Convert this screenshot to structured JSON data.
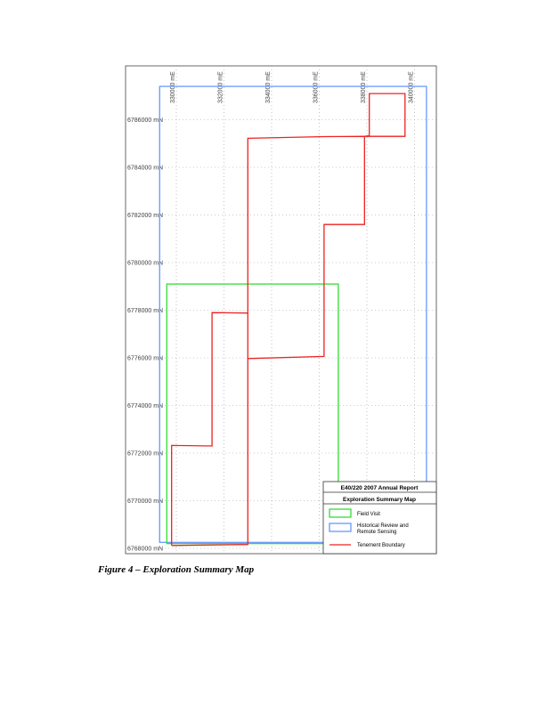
{
  "figure_caption": "Figure 4 – Exploration Summary Map",
  "map": {
    "easting_labels": [
      "330000 mE",
      "332000 mE",
      "334000 mE",
      "336000 mE",
      "338000 mE",
      "340000 mE"
    ],
    "northing_labels": [
      "6786000 mN",
      "6784000 mN",
      "6782000 mN",
      "6780000 mN",
      "6778000 mN",
      "6776000 mN",
      "6774000 mN",
      "6772000 mN",
      "6770000 mN",
      "6768000 mN"
    ],
    "tenement_boundary": [
      [
        329800,
        6768120
      ],
      [
        333000,
        6768160
      ],
      [
        333000,
        6777880
      ],
      [
        331500,
        6777900
      ],
      [
        331500,
        6772300
      ],
      [
        329800,
        6772320
      ],
      [
        329800,
        6768120
      ]
    ],
    "tenement_boundary_main": [
      [
        333000,
        6775970
      ],
      [
        336200,
        6776060
      ],
      [
        336200,
        6781600
      ],
      [
        337900,
        6781600
      ],
      [
        337900,
        6785300
      ],
      [
        336200,
        6785290
      ],
      [
        333000,
        6785220
      ],
      [
        333000,
        6777880
      ]
    ],
    "tenement_boundary_ne": [
      [
        337900,
        6785300
      ],
      [
        338100,
        6785330
      ],
      [
        338100,
        6787100
      ],
      [
        339600,
        6787100
      ],
      [
        339600,
        6785300
      ],
      [
        337900,
        6785300
      ]
    ],
    "field_visit_area": {
      "min_e": 329600,
      "max_e": 336800,
      "min_n": 6768200,
      "max_n": 6779100
    },
    "historical_review_area": {
      "min_e": 329300,
      "max_e": 340500,
      "min_n": 6768250,
      "max_n": 6787400
    }
  },
  "legend": {
    "title": "E40/220 2007 Annual Report",
    "subtitle": "Exploration Summary Map",
    "items": [
      {
        "label": "Field Visit",
        "color": "#33dd33",
        "kind": "box"
      },
      {
        "label": "Historical Review and Remote Sensing",
        "line1": "Historical Review and",
        "line2": "Remote Sensing",
        "color": "#6699ff",
        "kind": "box"
      },
      {
        "label": "Tenement Boundary",
        "color": "#ee2222",
        "kind": "line"
      }
    ]
  },
  "colors": {
    "field_visit": "#33dd33",
    "historical_review": "#6699ff",
    "tenement": "#ee2222",
    "grid": "#999999",
    "frame": "#444444"
  }
}
